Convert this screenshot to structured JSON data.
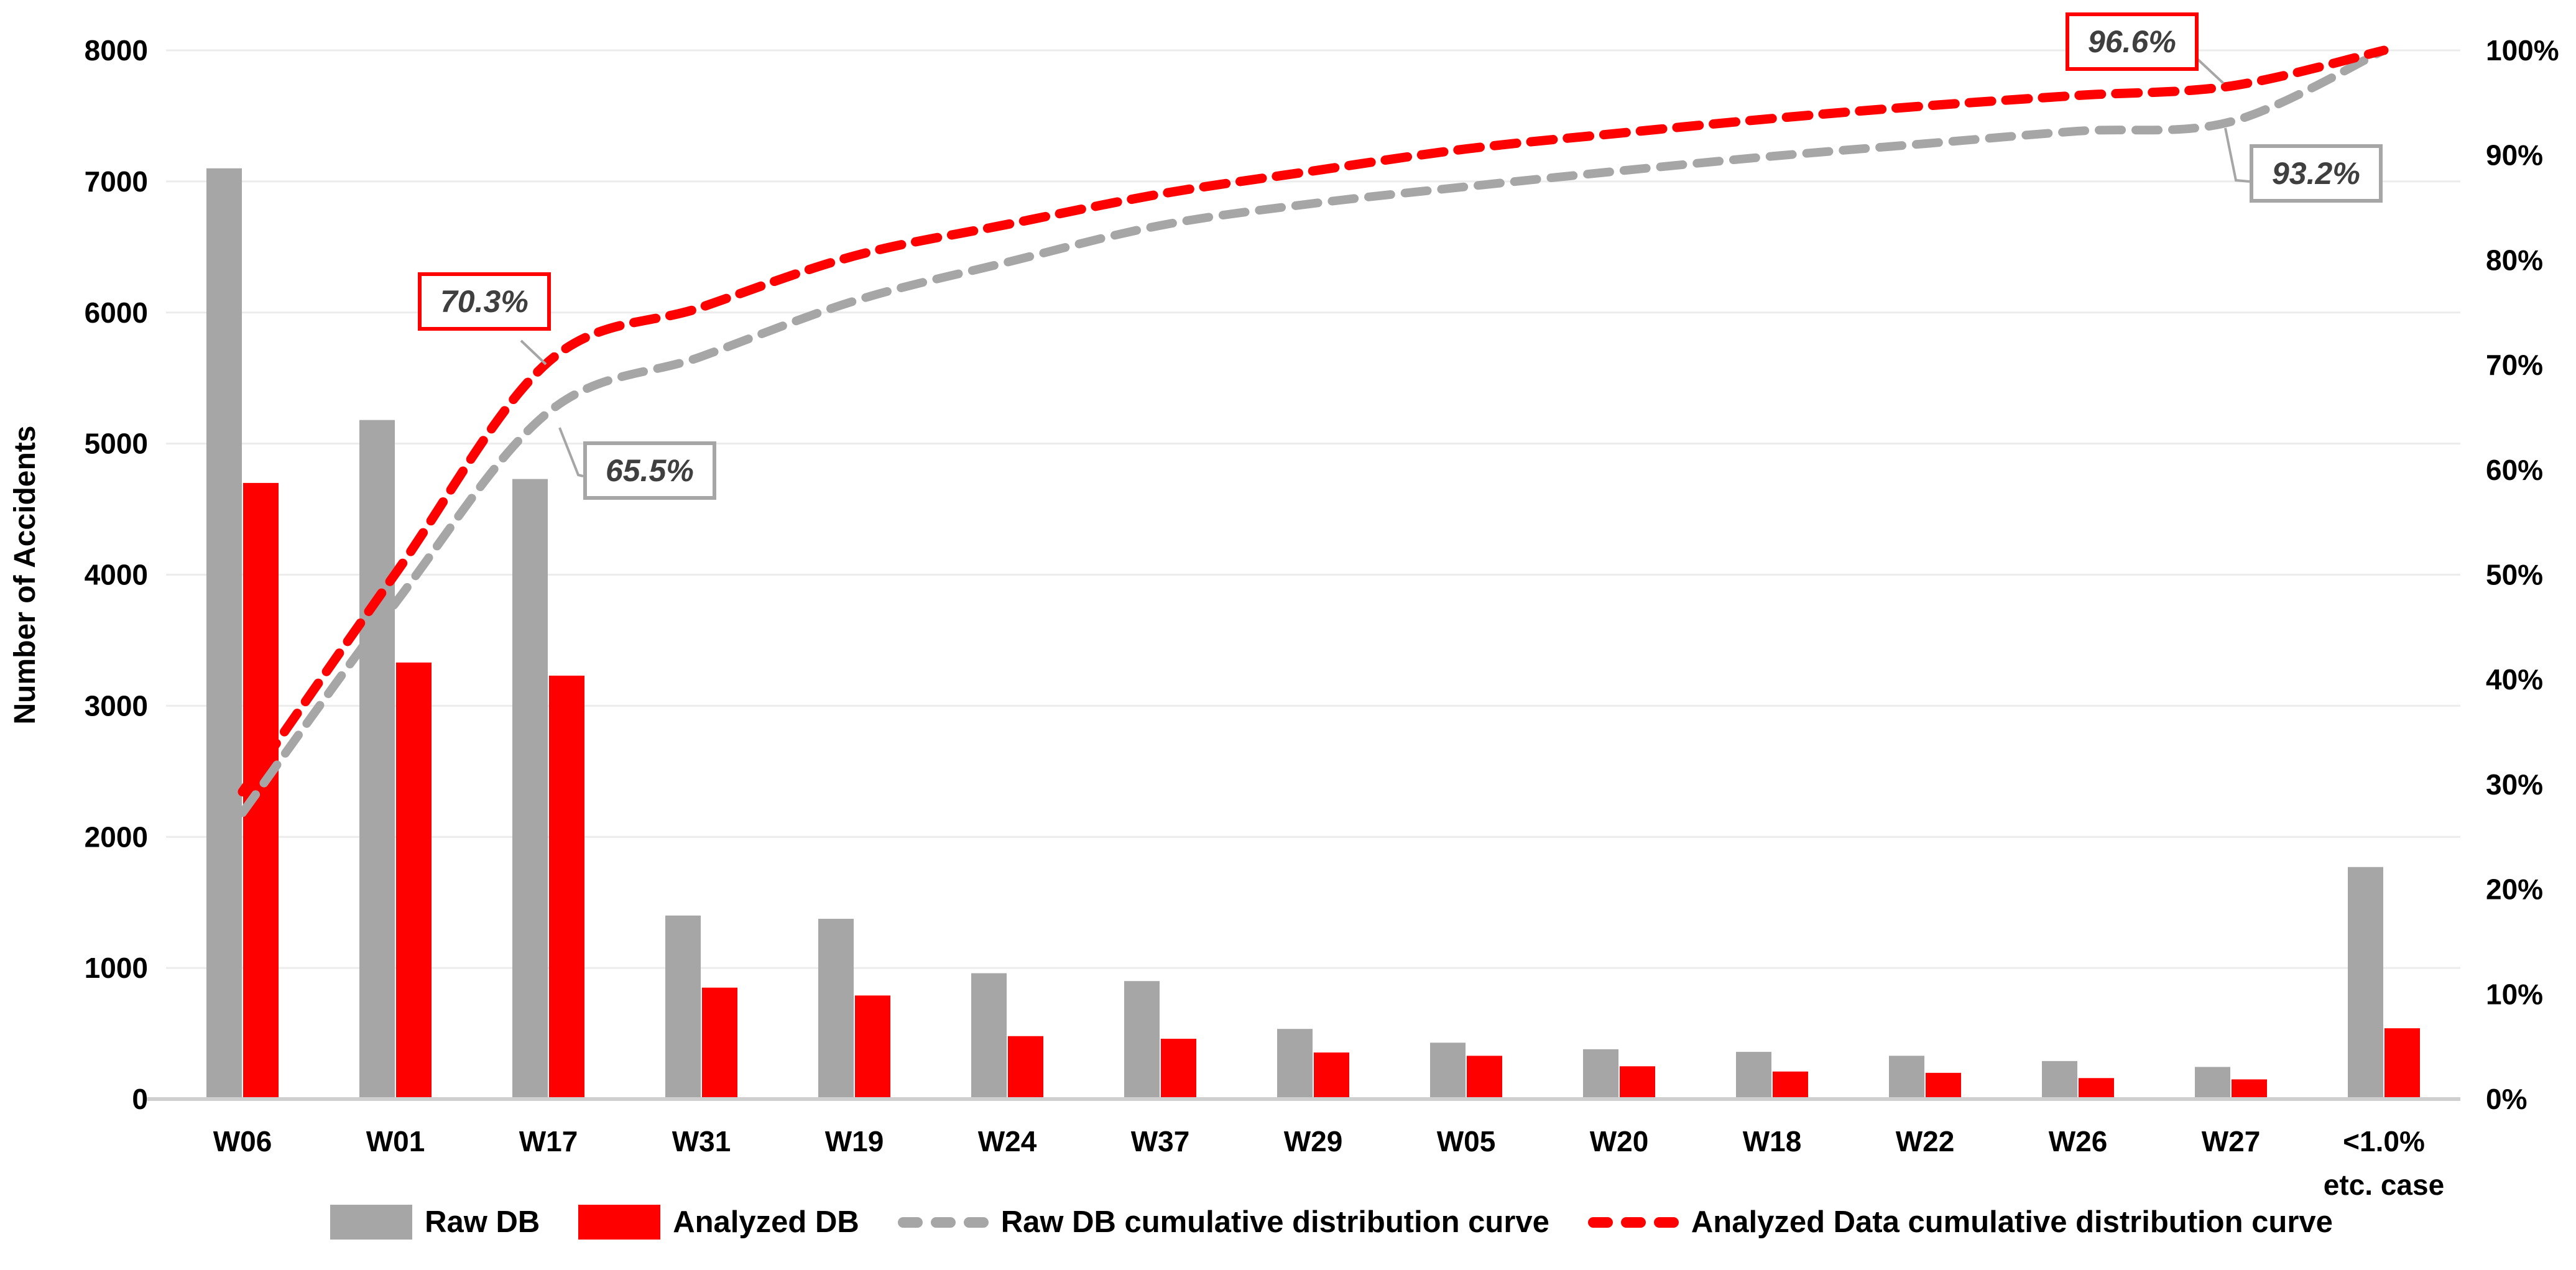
{
  "chart_data": {
    "type": "combo-bar-line-pareto",
    "title": "",
    "ylabel": "Number of Accidents",
    "categories": [
      "W06",
      "W01",
      "W17",
      "W31",
      "W19",
      "W24",
      "W37",
      "W29",
      "W05",
      "W20",
      "W18",
      "W22",
      "W26",
      "W27",
      "<1.0%"
    ],
    "last_category_line2": "etc. case",
    "left_axis": {
      "min": 0,
      "max": 8000,
      "tick_step": 1000,
      "ticks": [
        "0",
        "1000",
        "2000",
        "3000",
        "4000",
        "5000",
        "6000",
        "7000",
        "8000"
      ]
    },
    "right_axis": {
      "min": 0,
      "max": 100,
      "tick_step": 10,
      "ticks": [
        "0%",
        "10%",
        "20%",
        "30%",
        "40%",
        "50%",
        "60%",
        "70%",
        "80%",
        "90%",
        "100%"
      ]
    },
    "grid": "horizontal",
    "legend_position": "bottom",
    "bar_series": [
      {
        "name": "Raw DB",
        "color": "#a6a6a6",
        "values": [
          7100,
          5180,
          4730,
          1400,
          1375,
          960,
          900,
          535,
          430,
          380,
          360,
          330,
          290,
          245,
          1770
        ]
      },
      {
        "name": "Analyzed DB",
        "color": "#ff0000",
        "values": [
          4700,
          3330,
          3230,
          850,
          790,
          480,
          460,
          355,
          330,
          250,
          210,
          200,
          160,
          150,
          540
        ]
      }
    ],
    "line_series": [
      {
        "name": "Raw DB cumulative distribution curve",
        "color": "#a6a6a6",
        "axis": "right",
        "style": "dashed",
        "values": [
          27.3,
          47.3,
          65.5,
          70.8,
          76.1,
          79.8,
          83.3,
          85.4,
          87.0,
          88.5,
          89.9,
          91.1,
          92.3,
          93.2,
          100
        ]
      },
      {
        "name": "Analyzed Data cumulative distribution curve",
        "color": "#ff0000",
        "axis": "right",
        "style": "dashed",
        "values": [
          29.3,
          50.1,
          70.3,
          75.5,
          80.4,
          83.4,
          86.3,
          88.5,
          90.6,
          92.1,
          93.5,
          94.7,
          95.7,
          96.6,
          100
        ]
      }
    ],
    "annotations": [
      {
        "text": "70.3%",
        "series": 1,
        "category_index": 2,
        "border_color": "#ff0000"
      },
      {
        "text": "65.5%",
        "series": 0,
        "category_index": 2,
        "border_color": "#a6a6a6"
      },
      {
        "text": "96.6%",
        "series": 1,
        "category_index": 13,
        "border_color": "#ff0000"
      },
      {
        "text": "93.2%",
        "series": 0,
        "category_index": 13,
        "border_color": "#a6a6a6"
      }
    ]
  },
  "colors": {
    "background": "#ffffff",
    "grid": "#ececec",
    "baseline": "#cfcfcf",
    "axis_text": "#000000",
    "annotation_text": "#3f3f3f",
    "callout_line": "#a6a6a6"
  }
}
